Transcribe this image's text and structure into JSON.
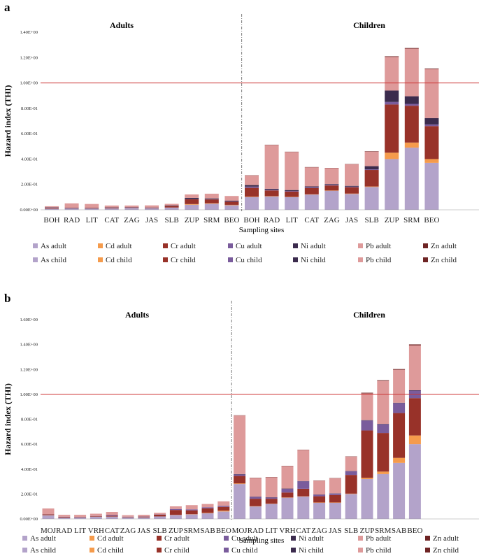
{
  "colors": {
    "As": "#b3a3ca",
    "Cd": "#f59b4c",
    "Cr": "#983229",
    "Cu": "#7a5c9c",
    "Ni": "#3b2b4d",
    "Pb": "#de9a9a",
    "Zn": "#6e2424",
    "threshold": "#cc3333",
    "divider": "#555555"
  },
  "chart_data": [
    {
      "type": "bar",
      "stacked": true,
      "panel_label": "a",
      "ylabel": "Hazard index (THI)",
      "xlabel": "Sampling sites",
      "ylim": [
        0,
        1.4
      ],
      "yticks": [
        0,
        0.2,
        0.4,
        0.6,
        0.8,
        1.0,
        1.2,
        1.4
      ],
      "ytick_labels": [
        "0.00E+00",
        "2.00E-01",
        "4.00E-01",
        "6.00E-01",
        "8.00E-01",
        "1.00E+00",
        "1.20E+00",
        "1.40E+00"
      ],
      "threshold": 1.0,
      "group_labels": [
        "Adults",
        "Children"
      ],
      "categories": [
        "BOH",
        "RAD",
        "LIT",
        "CAT",
        "ZAG",
        "JAS",
        "SLB",
        "ZUP",
        "SRM",
        "BEO",
        "BOH",
        "RAD",
        "LIT",
        "CAT",
        "ZAG",
        "JAS",
        "SLB",
        "ZUP",
        "SRM",
        "BEO"
      ],
      "series": [
        {
          "name": "As",
          "values": [
            0.01,
            0.011,
            0.01,
            0.012,
            0.015,
            0.012,
            0.018,
            0.04,
            0.048,
            0.036,
            0.1,
            0.105,
            0.1,
            0.12,
            0.15,
            0.125,
            0.18,
            0.4,
            0.49,
            0.37
          ]
        },
        {
          "name": "Cd",
          "values": [
            0.0,
            0.0,
            0.0,
            0.0,
            0.0,
            0.0,
            0.0,
            0.005,
            0.004,
            0.003,
            0.003,
            0.003,
            0.002,
            0.002,
            0.002,
            0.003,
            0.004,
            0.05,
            0.04,
            0.03
          ]
        },
        {
          "name": "Cr",
          "values": [
            0.007,
            0.004,
            0.004,
            0.005,
            0.004,
            0.004,
            0.013,
            0.038,
            0.03,
            0.025,
            0.07,
            0.045,
            0.042,
            0.05,
            0.04,
            0.05,
            0.13,
            0.38,
            0.29,
            0.26
          ]
        },
        {
          "name": "Cu",
          "values": [
            0.001,
            0.001,
            0.001,
            0.001,
            0.001,
            0.001,
            0.001,
            0.002,
            0.002,
            0.002,
            0.01,
            0.005,
            0.005,
            0.006,
            0.005,
            0.005,
            0.005,
            0.02,
            0.015,
            0.013
          ]
        },
        {
          "name": "Ni",
          "values": [
            0.002,
            0.001,
            0.001,
            0.001,
            0.001,
            0.001,
            0.003,
            0.009,
            0.006,
            0.006,
            0.012,
            0.008,
            0.007,
            0.007,
            0.006,
            0.006,
            0.025,
            0.09,
            0.06,
            0.05
          ]
        },
        {
          "name": "Pb",
          "values": [
            0.008,
            0.034,
            0.03,
            0.015,
            0.013,
            0.017,
            0.012,
            0.027,
            0.037,
            0.037,
            0.075,
            0.345,
            0.3,
            0.15,
            0.125,
            0.17,
            0.115,
            0.265,
            0.375,
            0.385
          ]
        },
        {
          "name": "Zn",
          "values": [
            0.0,
            0.0,
            0.0,
            0.0,
            0.0,
            0.0,
            0.0,
            0.0,
            0.0,
            0.0,
            0.002,
            0.002,
            0.002,
            0.002,
            0.002,
            0.002,
            0.003,
            0.005,
            0.005,
            0.005
          ]
        }
      ],
      "legend": [
        [
          "As adult",
          "Cd adult",
          "Cr adult",
          "Cu adult",
          "Ni adult",
          "Pb adult",
          "Zn adult"
        ],
        [
          "As child",
          "Cd child",
          "Cr child",
          "Cu child",
          "Ni child",
          "Pb child",
          "Zn child"
        ]
      ]
    },
    {
      "type": "bar",
      "stacked": true,
      "panel_label": "b",
      "ylabel": "Hazard index (THI)",
      "xlabel": "Sampling sites",
      "ylim": [
        0,
        1.6
      ],
      "yticks": [
        0,
        0.2,
        0.4,
        0.6,
        0.8,
        1.0,
        1.2,
        1.4,
        1.6
      ],
      "ytick_labels": [
        "0.00E+00",
        "2.00E-01",
        "4.00E-01",
        "6.00E-01",
        "8.00E-01",
        "1.00E+00",
        "1.20E+00",
        "1.40E+00",
        "1.60E+00"
      ],
      "threshold": 1.0,
      "group_labels": [
        "Adults",
        "Children"
      ],
      "categories": [
        "MOJ",
        "RAD",
        "LIT",
        "VRH",
        "CAT",
        "ZAG",
        "JAS",
        "SLB",
        "ZUP",
        "SRM",
        "SAB",
        "BEO",
        "MOJ",
        "RAD",
        "LIT",
        "VRH",
        "CAT",
        "ZAG",
        "JAS",
        "SLB",
        "ZUP",
        "SRM",
        "SAB",
        "BEO"
      ],
      "series": [
        {
          "name": "As",
          "values": [
            0.03,
            0.011,
            0.012,
            0.018,
            0.019,
            0.013,
            0.013,
            0.02,
            0.032,
            0.036,
            0.045,
            0.06,
            0.28,
            0.1,
            0.12,
            0.17,
            0.18,
            0.13,
            0.13,
            0.2,
            0.32,
            0.36,
            0.45,
            0.6
          ]
        },
        {
          "name": "Cd",
          "values": [
            0.001,
            0.0,
            0.0,
            0.0,
            0.0,
            0.0,
            0.0,
            0.0,
            0.001,
            0.002,
            0.004,
            0.007,
            0.005,
            0.002,
            0.002,
            0.002,
            0.002,
            0.002,
            0.002,
            0.003,
            0.01,
            0.02,
            0.04,
            0.07
          ]
        },
        {
          "name": "Cr",
          "values": [
            0.006,
            0.006,
            0.004,
            0.004,
            0.006,
            0.004,
            0.006,
            0.015,
            0.039,
            0.031,
            0.036,
            0.03,
            0.06,
            0.06,
            0.04,
            0.04,
            0.06,
            0.05,
            0.06,
            0.15,
            0.38,
            0.31,
            0.36,
            0.3
          ]
        },
        {
          "name": "Cu",
          "values": [
            0.001,
            0.001,
            0.001,
            0.002,
            0.006,
            0.001,
            0.001,
            0.002,
            0.008,
            0.008,
            0.009,
            0.008,
            0.012,
            0.015,
            0.01,
            0.03,
            0.06,
            0.012,
            0.012,
            0.03,
            0.08,
            0.07,
            0.08,
            0.06
          ]
        },
        {
          "name": "Ni",
          "values": [
            0.0,
            0.0,
            0.0,
            0.0,
            0.0,
            0.0,
            0.0,
            0.0,
            0.0,
            0.0,
            0.0,
            0.0,
            0.003,
            0.002,
            0.002,
            0.002,
            0.002,
            0.002,
            0.002,
            0.002,
            0.003,
            0.003,
            0.003,
            0.003
          ]
        },
        {
          "name": "Pb",
          "values": [
            0.046,
            0.015,
            0.016,
            0.018,
            0.025,
            0.012,
            0.013,
            0.012,
            0.021,
            0.034,
            0.026,
            0.036,
            0.47,
            0.15,
            0.16,
            0.18,
            0.25,
            0.11,
            0.12,
            0.115,
            0.215,
            0.345,
            0.265,
            0.36
          ]
        },
        {
          "name": "Zn",
          "values": [
            0.0,
            0.0,
            0.0,
            0.0,
            0.0,
            0.0,
            0.0,
            0.0,
            0.0,
            0.0,
            0.0,
            0.0,
            0.002,
            0.002,
            0.002,
            0.002,
            0.002,
            0.002,
            0.002,
            0.002,
            0.005,
            0.005,
            0.005,
            0.008
          ]
        }
      ],
      "legend": [
        [
          "As adult",
          "Cd adult",
          "Cr adult",
          "Cu adult",
          "Ni adult",
          "Pb adult",
          "Zn adult"
        ],
        [
          "As child",
          "Cd child",
          "Cr child",
          "Cu child",
          "Ni child",
          "Pb child",
          "Zn child"
        ]
      ]
    }
  ]
}
